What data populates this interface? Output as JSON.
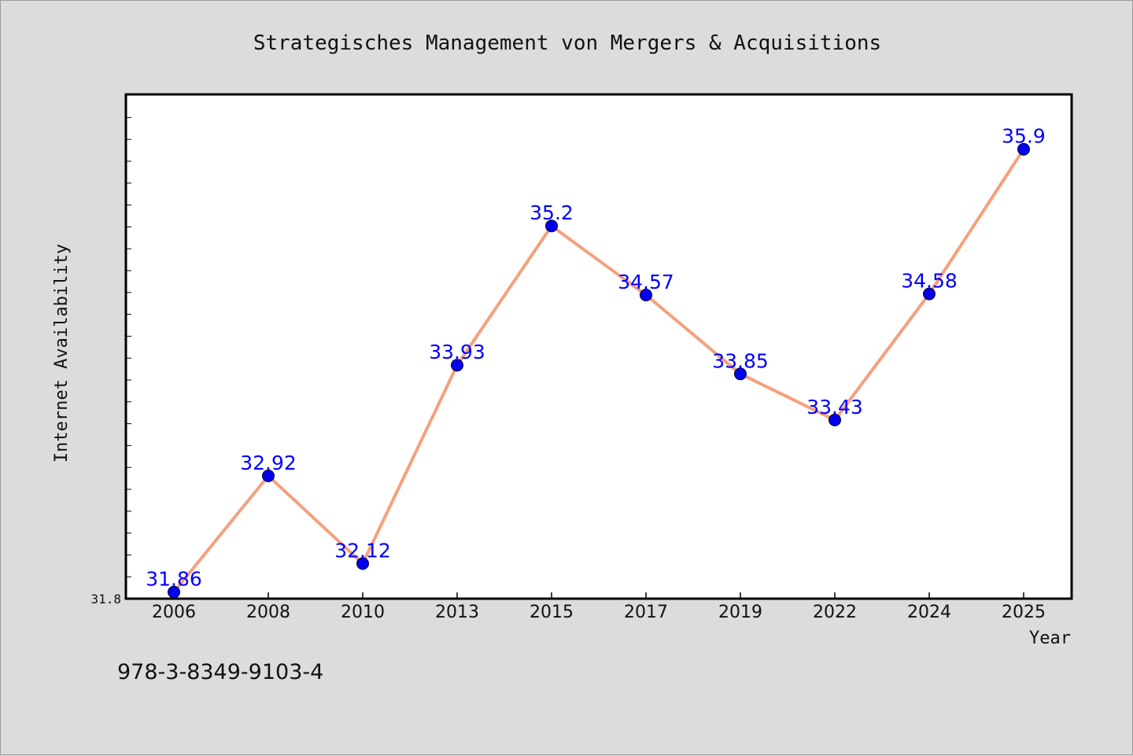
{
  "colors": {
    "background": "#dcdcdc",
    "plot_background": "#ffffff",
    "line": "#f4a07e",
    "marker": "#0000ee",
    "data_label": "#0000ff"
  },
  "footnote": "978-3-8349-9103-4",
  "chart_data": {
    "type": "line",
    "title": "Strategisches Management von Mergers & Acquisitions",
    "xlabel": "Year",
    "ylabel": "Internet Availability",
    "categories": [
      "2006",
      "2008",
      "2010",
      "2013",
      "2015",
      "2017",
      "2019",
      "2022",
      "2024",
      "2025"
    ],
    "series": [
      {
        "values": [
          31.86,
          32.92,
          32.12,
          33.93,
          35.2,
          34.57,
          33.85,
          33.43,
          34.58,
          35.9
        ],
        "labels": [
          "31.86",
          "32.92",
          "32.12",
          "33.93",
          "35.2",
          "34.57",
          "33.85",
          "33.43",
          "34.58",
          "35.9"
        ]
      }
    ],
    "ylim": [
      31.8,
      36.4
    ],
    "y_tick_labels": [
      "31.8"
    ],
    "grid": false,
    "legend": "none"
  }
}
